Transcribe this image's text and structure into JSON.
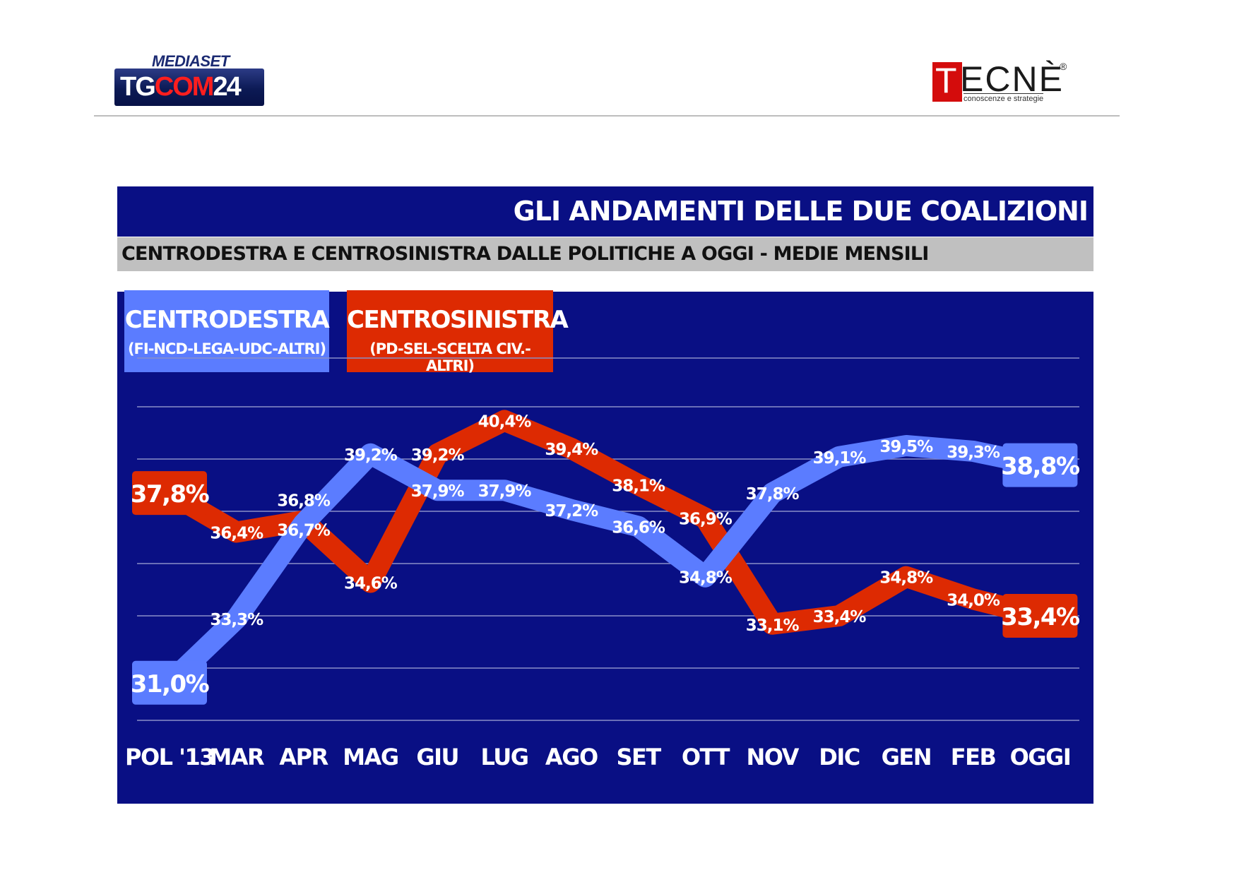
{
  "header": {
    "mediaset_logo": "MEDIASET",
    "tgcom_logo_a": "TG",
    "tgcom_logo_b": "COM",
    "tgcom_logo_c": "24",
    "tecne_logo_initial": "T",
    "tecne_logo_rest": "ECNÈ",
    "tecne_registered": "®",
    "tecne_tagline": "conoscenze e strategie"
  },
  "title": "GLI ANDAMENTI DELLE DUE COALIZIONI",
  "subtitle": "CENTRODESTRA E CENTROSINISTRA DALLE POLITICHE A OGGI - MEDIE MENSILI",
  "legend": {
    "centrodestra": {
      "name": "CENTRODESTRA",
      "sub": "(FI-NCD-LEGA-UDC-ALTRI)"
    },
    "centrosinistra": {
      "name": "CENTROSINISTRA",
      "sub": "(PD-SEL-SCELTA CIV.-ALTRI)"
    }
  },
  "colors": {
    "background_panel": "#090f84",
    "centrodestra": "#5b7cff",
    "centrosinistra": "#dd2a02",
    "gridline": "#8a8fc8",
    "subtitle_bar": "#c0c0c0"
  },
  "chart_data": {
    "type": "line",
    "title": "GLI ANDAMENTI DELLE DUE COALIZIONI",
    "categories": [
      "POL '13",
      "MAR",
      "APR",
      "MAG",
      "GIU",
      "LUG",
      "AGO",
      "SET",
      "OTT",
      "NOV",
      "DIC",
      "GEN",
      "FEB",
      "OGGI"
    ],
    "series": [
      {
        "name": "CENTRODESTRA",
        "color": "#5b7cff",
        "values": [
          31.0,
          33.3,
          36.7,
          39.2,
          37.9,
          37.9,
          37.2,
          36.6,
          34.8,
          37.8,
          39.1,
          39.5,
          39.3,
          38.8
        ],
        "labels": [
          "31,0%",
          "33,3%",
          "36,7%",
          "39,2%",
          "37,9%",
          "37,9%",
          "37,2%",
          "36,6%",
          "34,8%",
          "37,8%",
          "39,1%",
          "39,5%",
          "39,3%",
          "38,8%"
        ]
      },
      {
        "name": "CENTROSINISTRA",
        "color": "#dd2a02",
        "values": [
          37.8,
          36.4,
          36.8,
          34.6,
          39.2,
          40.4,
          39.4,
          38.1,
          36.9,
          33.1,
          33.4,
          34.8,
          34.0,
          33.4
        ],
        "labels": [
          "37,8%",
          "36,4%",
          "36,8%",
          "34,6%",
          "39,2%",
          "40,4%",
          "39,4%",
          "38,1%",
          "36,9%",
          "33,1%",
          "33,4%",
          "34,8%",
          "34,0%",
          "33,4%"
        ]
      }
    ],
    "ylim": [
      29.5,
      42.0
    ],
    "grid": true,
    "legend": "top-left"
  }
}
